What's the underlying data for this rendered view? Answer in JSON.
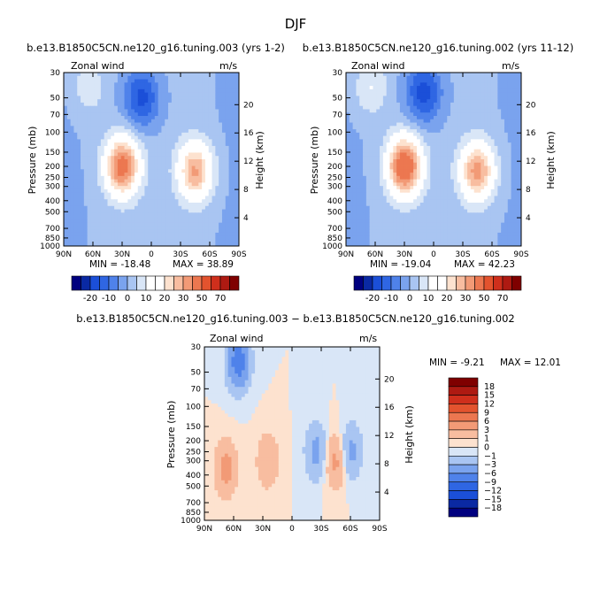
{
  "figure_title": "DJF",
  "chart_data": [
    {
      "type": "heatmap",
      "id": "panel-1",
      "title": "b.e13.B1850C5CN.ne120_g16.tuning.003 (yrs 1-2)",
      "variable": "Zonal wind",
      "units": "m/s",
      "ylabel": "Pressure (mb)",
      "ylabel_right": "Height (km)",
      "x_ticks": [
        "90N",
        "60N",
        "30N",
        "0",
        "30S",
        "60S",
        "90S"
      ],
      "y_ticks": [
        "30",
        "50",
        "70",
        "100",
        "150",
        "200",
        "250",
        "300",
        "400",
        "500",
        "700",
        "850",
        "1000"
      ],
      "y_ticks_right": [
        "20",
        "16",
        "12",
        "8",
        "4"
      ],
      "ylim": [
        1000,
        30
      ],
      "xlim": [
        90,
        -90
      ],
      "min_label": "MIN = -18.48",
      "max_label": "MAX = 38.89",
      "stats": {
        "min": -18.48,
        "max": 38.89
      },
      "features": [
        {
          "lat": 30,
          "p": 200,
          "value": 38
        },
        {
          "lat": -45,
          "p": 220,
          "value": 30
        },
        {
          "lat": 10,
          "p": 50,
          "value": -18
        },
        {
          "lat": 65,
          "p": 40,
          "value": 8
        }
      ],
      "colorbar": {
        "orientation": "horizontal",
        "levels": [
          -30,
          -25,
          -20,
          -15,
          -10,
          -5,
          0,
          5,
          10,
          15,
          20,
          25,
          30,
          40,
          50,
          60,
          70
        ],
        "tick_labels": [
          "-20",
          "-10",
          "0",
          "10",
          "20",
          "30",
          "50",
          "70"
        ]
      }
    },
    {
      "type": "heatmap",
      "id": "panel-2",
      "title": "b.e13.B1850C5CN.ne120_g16.tuning.002 (yrs 11-12)",
      "variable": "Zonal wind",
      "units": "m/s",
      "ylabel": "Pressure (mb)",
      "ylabel_right": "Height (km)",
      "x_ticks": [
        "90N",
        "60N",
        "30N",
        "0",
        "30S",
        "60S",
        "90S"
      ],
      "y_ticks": [
        "30",
        "50",
        "70",
        "100",
        "150",
        "200",
        "250",
        "300",
        "400",
        "500",
        "700",
        "850",
        "1000"
      ],
      "y_ticks_right": [
        "20",
        "16",
        "12",
        "8",
        "4"
      ],
      "ylim": [
        1000,
        30
      ],
      "xlim": [
        90,
        -90
      ],
      "min_label": "MIN = -19.04",
      "max_label": "MAX = 42.23",
      "stats": {
        "min": -19.04,
        "max": 42.23
      },
      "features": [
        {
          "lat": 30,
          "p": 200,
          "value": 42
        },
        {
          "lat": -45,
          "p": 220,
          "value": 32
        },
        {
          "lat": 10,
          "p": 45,
          "value": -19
        },
        {
          "lat": 65,
          "p": 40,
          "value": 10
        }
      ],
      "colorbar": {
        "orientation": "horizontal",
        "levels": [
          -30,
          -25,
          -20,
          -15,
          -10,
          -5,
          0,
          5,
          10,
          15,
          20,
          25,
          30,
          40,
          50,
          60,
          70
        ],
        "tick_labels": [
          "-20",
          "-10",
          "0",
          "10",
          "20",
          "30",
          "50",
          "70"
        ]
      }
    },
    {
      "type": "heatmap",
      "id": "panel-diff",
      "title": "b.e13.B1850C5CN.ne120_g16.tuning.003 − b.e13.B1850C5CN.ne120_g16.tuning.002",
      "variable": "Zonal wind",
      "units": "m/s",
      "ylabel": "Pressure (mb)",
      "ylabel_right": "Height (km)",
      "x_ticks": [
        "90N",
        "60N",
        "30N",
        "0",
        "30S",
        "60S",
        "90S"
      ],
      "y_ticks": [
        "30",
        "50",
        "70",
        "100",
        "150",
        "200",
        "250",
        "300",
        "400",
        "500",
        "700",
        "850",
        "1000"
      ],
      "y_ticks_right": [
        "20",
        "16",
        "12",
        "8",
        "4"
      ],
      "ylim": [
        1000,
        30
      ],
      "xlim": [
        90,
        -90
      ],
      "min_label": "MIN =   -9.21",
      "max_label": "MAX =  12.01",
      "stats": {
        "min": -9.21,
        "max": 12.01
      },
      "features": [
        {
          "lat": 55,
          "p": 40,
          "value": -8
        },
        {
          "lat": -25,
          "p": 250,
          "value": -4
        },
        {
          "lat": 68,
          "p": 350,
          "value": 4
        },
        {
          "lat": 25,
          "p": 300,
          "value": 3
        },
        {
          "lat": -45,
          "p": 300,
          "value": 4
        },
        {
          "lat": -60,
          "p": 250,
          "value": -4
        }
      ],
      "colorbar": {
        "orientation": "vertical",
        "levels": [
          -18,
          -15,
          -12,
          -9,
          -6,
          -3,
          -1,
          0,
          1,
          3,
          6,
          9,
          12,
          15,
          18
        ],
        "tick_labels": [
          "18",
          "15",
          "12",
          "9",
          "6",
          "3",
          "1",
          "0",
          "−1",
          "−3",
          "−6",
          "−9",
          "−12",
          "−15",
          "−18"
        ]
      }
    }
  ],
  "palette": [
    "#00007f",
    "#0a29a3",
    "#1b4fd8",
    "#2f66e3",
    "#4f82ea",
    "#7aa3ee",
    "#a9c5f2",
    "#d9e6f7",
    "#ffffff",
    "#fde2cf",
    "#f8bda0",
    "#f29a76",
    "#ec7750",
    "#e3532e",
    "#cf2f1c",
    "#ae1a12",
    "#7f0000"
  ]
}
